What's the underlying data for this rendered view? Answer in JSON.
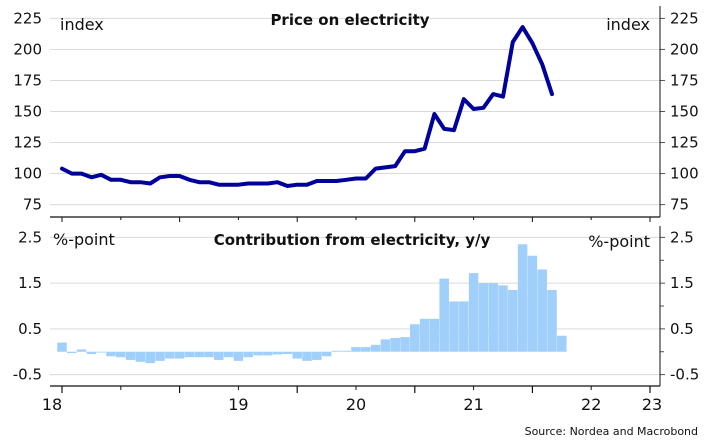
{
  "source": "Source: Nordea and Macrobond",
  "chart_data": [
    {
      "type": "line",
      "title": "Price on electricity",
      "unit_left": "index",
      "unit_right": "index",
      "ylim": [
        65,
        235
      ],
      "y_ticks": [
        "225",
        "200",
        "175",
        "150",
        "125",
        "100",
        "75"
      ],
      "grid": true,
      "colors": {
        "line": "#00009a"
      },
      "x_start": "2018-01",
      "x_labels": [
        "18",
        "19",
        "20",
        "21",
        "22",
        "23"
      ],
      "series": [
        {
          "values": [
            104,
            100,
            100,
            97,
            99,
            95,
            95,
            93,
            93,
            92,
            97,
            98,
            98,
            95,
            93,
            93,
            91,
            91,
            91,
            92,
            92,
            92,
            93,
            90,
            91,
            91,
            94,
            94,
            94,
            95,
            96,
            96,
            104,
            105,
            106,
            118,
            118,
            120,
            148,
            136,
            135,
            160,
            152,
            153,
            164,
            162,
            206,
            218,
            205,
            188,
            164
          ]
        }
      ]
    },
    {
      "type": "bar",
      "title": "Contribution from electricity, y/y",
      "unit_left": "%-point",
      "unit_right": "%-point",
      "ylim": [
        -0.75,
        2.75
      ],
      "y_ticks": [
        "2.5",
        "1.5",
        "0.5",
        "-0.5"
      ],
      "grid": true,
      "colors": {
        "bar": "#9fcffa"
      },
      "x_start": "2018-01",
      "series": [
        {
          "values": [
            0.2,
            -0.03,
            0.05,
            -0.05,
            0.0,
            -0.1,
            -0.12,
            -0.18,
            -0.22,
            -0.25,
            -0.2,
            -0.15,
            -0.15,
            -0.12,
            -0.12,
            -0.12,
            -0.18,
            -0.12,
            -0.2,
            -0.12,
            -0.08,
            -0.08,
            -0.06,
            -0.05,
            -0.15,
            -0.2,
            -0.18,
            -0.1,
            0.02,
            0.02,
            0.1,
            0.1,
            0.15,
            0.27,
            0.3,
            0.32,
            0.6,
            0.72,
            0.72,
            1.6,
            1.1,
            1.1,
            1.72,
            1.5,
            1.5,
            1.45,
            1.35,
            2.35,
            2.1,
            1.8,
            1.35,
            0.35
          ]
        }
      ]
    }
  ]
}
